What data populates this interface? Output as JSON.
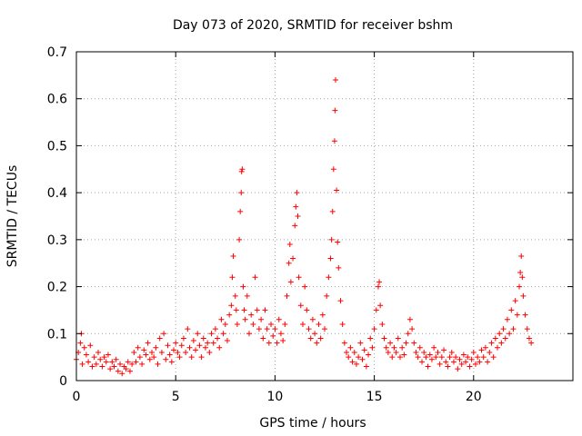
{
  "chart_data": {
    "type": "scatter",
    "title": "Day 073 of 2020, SRMTID for receiver bshm",
    "xlabel": "GPS time / hours",
    "ylabel": "SRMTID / TECUs",
    "xlim": [
      0,
      25
    ],
    "ylim": [
      0,
      0.7
    ],
    "xticks": [
      0,
      5,
      10,
      15,
      20
    ],
    "xtick_labels": [
      "0",
      "5",
      "10",
      "15",
      "20"
    ],
    "yticks": [
      0,
      0.1,
      0.2,
      0.3,
      0.4,
      0.5,
      0.6,
      0.7
    ],
    "ytick_labels": [
      "0",
      "0.1",
      "0.2",
      "0.3",
      "0.4",
      "0.5",
      "0.6",
      "0.7"
    ],
    "grid": true,
    "marker": "+",
    "color": "#ff0000",
    "series": [
      {
        "name": "SRMTID",
        "points": [
          [
            0.0,
            0.045
          ],
          [
            0.1,
            0.06
          ],
          [
            0.2,
            0.08
          ],
          [
            0.25,
            0.1
          ],
          [
            0.3,
            0.035
          ],
          [
            0.4,
            0.07
          ],
          [
            0.5,
            0.055
          ],
          [
            0.6,
            0.04
          ],
          [
            0.7,
            0.075
          ],
          [
            0.8,
            0.03
          ],
          [
            0.9,
            0.05
          ],
          [
            1.0,
            0.035
          ],
          [
            1.1,
            0.06
          ],
          [
            1.2,
            0.045
          ],
          [
            1.3,
            0.03
          ],
          [
            1.4,
            0.05
          ],
          [
            1.5,
            0.04
          ],
          [
            1.6,
            0.055
          ],
          [
            1.7,
            0.025
          ],
          [
            1.8,
            0.04
          ],
          [
            1.9,
            0.03
          ],
          [
            2.0,
            0.045
          ],
          [
            2.1,
            0.02
          ],
          [
            2.2,
            0.035
          ],
          [
            2.3,
            0.015
          ],
          [
            2.4,
            0.03
          ],
          [
            2.5,
            0.025
          ],
          [
            2.6,
            0.04
          ],
          [
            2.7,
            0.02
          ],
          [
            2.8,
            0.035
          ],
          [
            2.9,
            0.06
          ],
          [
            3.0,
            0.04
          ],
          [
            3.1,
            0.07
          ],
          [
            3.2,
            0.05
          ],
          [
            3.3,
            0.035
          ],
          [
            3.4,
            0.065
          ],
          [
            3.5,
            0.055
          ],
          [
            3.6,
            0.08
          ],
          [
            3.7,
            0.045
          ],
          [
            3.8,
            0.06
          ],
          [
            3.9,
            0.05
          ],
          [
            4.0,
            0.07
          ],
          [
            4.1,
            0.035
          ],
          [
            4.2,
            0.09
          ],
          [
            4.3,
            0.06
          ],
          [
            4.4,
            0.1
          ],
          [
            4.5,
            0.045
          ],
          [
            4.6,
            0.075
          ],
          [
            4.7,
            0.055
          ],
          [
            4.8,
            0.04
          ],
          [
            4.9,
            0.065
          ],
          [
            5.0,
            0.08
          ],
          [
            5.1,
            0.06
          ],
          [
            5.2,
            0.05
          ],
          [
            5.3,
            0.075
          ],
          [
            5.4,
            0.09
          ],
          [
            5.5,
            0.06
          ],
          [
            5.6,
            0.11
          ],
          [
            5.7,
            0.07
          ],
          [
            5.8,
            0.05
          ],
          [
            5.9,
            0.085
          ],
          [
            6.0,
            0.065
          ],
          [
            6.1,
            0.1
          ],
          [
            6.2,
            0.075
          ],
          [
            6.3,
            0.05
          ],
          [
            6.4,
            0.09
          ],
          [
            6.5,
            0.07
          ],
          [
            6.6,
            0.08
          ],
          [
            6.7,
            0.06
          ],
          [
            6.8,
            0.1
          ],
          [
            6.9,
            0.08
          ],
          [
            7.0,
            0.11
          ],
          [
            7.1,
            0.09
          ],
          [
            7.2,
            0.07
          ],
          [
            7.3,
            0.13
          ],
          [
            7.4,
            0.1
          ],
          [
            7.5,
            0.12
          ],
          [
            7.6,
            0.085
          ],
          [
            7.7,
            0.14
          ],
          [
            7.8,
            0.16
          ],
          [
            7.85,
            0.22
          ],
          [
            7.9,
            0.265
          ],
          [
            8.0,
            0.18
          ],
          [
            8.05,
            0.15
          ],
          [
            8.1,
            0.12
          ],
          [
            8.2,
            0.3
          ],
          [
            8.25,
            0.36
          ],
          [
            8.3,
            0.4
          ],
          [
            8.32,
            0.445
          ],
          [
            8.35,
            0.45
          ],
          [
            8.4,
            0.2
          ],
          [
            8.45,
            0.15
          ],
          [
            8.5,
            0.13
          ],
          [
            8.6,
            0.18
          ],
          [
            8.7,
            0.1
          ],
          [
            8.8,
            0.14
          ],
          [
            8.9,
            0.12
          ],
          [
            9.0,
            0.22
          ],
          [
            9.1,
            0.15
          ],
          [
            9.2,
            0.11
          ],
          [
            9.3,
            0.13
          ],
          [
            9.4,
            0.09
          ],
          [
            9.5,
            0.15
          ],
          [
            9.6,
            0.11
          ],
          [
            9.7,
            0.08
          ],
          [
            9.8,
            0.12
          ],
          [
            9.9,
            0.095
          ],
          [
            10.0,
            0.11
          ],
          [
            10.1,
            0.08
          ],
          [
            10.2,
            0.13
          ],
          [
            10.3,
            0.1
          ],
          [
            10.4,
            0.085
          ],
          [
            10.5,
            0.12
          ],
          [
            10.6,
            0.18
          ],
          [
            10.7,
            0.25
          ],
          [
            10.75,
            0.29
          ],
          [
            10.8,
            0.21
          ],
          [
            10.9,
            0.26
          ],
          [
            11.0,
            0.33
          ],
          [
            11.05,
            0.37
          ],
          [
            11.1,
            0.4
          ],
          [
            11.15,
            0.35
          ],
          [
            11.2,
            0.22
          ],
          [
            11.3,
            0.16
          ],
          [
            11.4,
            0.12
          ],
          [
            11.5,
            0.2
          ],
          [
            11.6,
            0.15
          ],
          [
            11.7,
            0.11
          ],
          [
            11.8,
            0.09
          ],
          [
            11.9,
            0.13
          ],
          [
            12.0,
            0.1
          ],
          [
            12.1,
            0.08
          ],
          [
            12.2,
            0.12
          ],
          [
            12.3,
            0.09
          ],
          [
            12.4,
            0.14
          ],
          [
            12.5,
            0.11
          ],
          [
            12.6,
            0.18
          ],
          [
            12.7,
            0.22
          ],
          [
            12.8,
            0.26
          ],
          [
            12.85,
            0.3
          ],
          [
            12.9,
            0.36
          ],
          [
            12.95,
            0.45
          ],
          [
            13.0,
            0.51
          ],
          [
            13.02,
            0.575
          ],
          [
            13.05,
            0.64
          ],
          [
            13.1,
            0.405
          ],
          [
            13.15,
            0.295
          ],
          [
            13.2,
            0.24
          ],
          [
            13.3,
            0.17
          ],
          [
            13.4,
            0.12
          ],
          [
            13.5,
            0.08
          ],
          [
            13.6,
            0.06
          ],
          [
            13.7,
            0.05
          ],
          [
            13.8,
            0.07
          ],
          [
            13.9,
            0.04
          ],
          [
            14.0,
            0.06
          ],
          [
            14.1,
            0.035
          ],
          [
            14.2,
            0.05
          ],
          [
            14.3,
            0.08
          ],
          [
            14.4,
            0.045
          ],
          [
            14.5,
            0.065
          ],
          [
            14.6,
            0.03
          ],
          [
            14.7,
            0.055
          ],
          [
            14.8,
            0.09
          ],
          [
            14.9,
            0.07
          ],
          [
            15.0,
            0.11
          ],
          [
            15.1,
            0.15
          ],
          [
            15.2,
            0.2
          ],
          [
            15.25,
            0.21
          ],
          [
            15.3,
            0.16
          ],
          [
            15.4,
            0.12
          ],
          [
            15.5,
            0.09
          ],
          [
            15.6,
            0.07
          ],
          [
            15.7,
            0.06
          ],
          [
            15.8,
            0.08
          ],
          [
            15.9,
            0.05
          ],
          [
            16.0,
            0.07
          ],
          [
            16.1,
            0.06
          ],
          [
            16.2,
            0.09
          ],
          [
            16.3,
            0.05
          ],
          [
            16.4,
            0.07
          ],
          [
            16.5,
            0.055
          ],
          [
            16.6,
            0.08
          ],
          [
            16.7,
            0.1
          ],
          [
            16.8,
            0.13
          ],
          [
            16.9,
            0.11
          ],
          [
            17.0,
            0.08
          ],
          [
            17.1,
            0.06
          ],
          [
            17.2,
            0.05
          ],
          [
            17.3,
            0.07
          ],
          [
            17.4,
            0.04
          ],
          [
            17.5,
            0.06
          ],
          [
            17.6,
            0.05
          ],
          [
            17.7,
            0.03
          ],
          [
            17.8,
            0.055
          ],
          [
            17.9,
            0.045
          ],
          [
            18.0,
            0.07
          ],
          [
            18.1,
            0.05
          ],
          [
            18.2,
            0.06
          ],
          [
            18.3,
            0.035
          ],
          [
            18.4,
            0.05
          ],
          [
            18.5,
            0.065
          ],
          [
            18.6,
            0.04
          ],
          [
            18.7,
            0.03
          ],
          [
            18.8,
            0.05
          ],
          [
            18.9,
            0.06
          ],
          [
            19.0,
            0.04
          ],
          [
            19.1,
            0.05
          ],
          [
            19.2,
            0.025
          ],
          [
            19.3,
            0.045
          ],
          [
            19.4,
            0.035
          ],
          [
            19.5,
            0.055
          ],
          [
            19.6,
            0.04
          ],
          [
            19.7,
            0.05
          ],
          [
            19.8,
            0.03
          ],
          [
            19.9,
            0.045
          ],
          [
            20.0,
            0.06
          ],
          [
            20.1,
            0.035
          ],
          [
            20.2,
            0.05
          ],
          [
            20.3,
            0.04
          ],
          [
            20.4,
            0.065
          ],
          [
            20.5,
            0.05
          ],
          [
            20.6,
            0.07
          ],
          [
            20.7,
            0.04
          ],
          [
            20.8,
            0.06
          ],
          [
            20.9,
            0.08
          ],
          [
            21.0,
            0.05
          ],
          [
            21.1,
            0.09
          ],
          [
            21.2,
            0.07
          ],
          [
            21.3,
            0.1
          ],
          [
            21.4,
            0.08
          ],
          [
            21.5,
            0.11
          ],
          [
            21.6,
            0.09
          ],
          [
            21.7,
            0.13
          ],
          [
            21.8,
            0.1
          ],
          [
            21.9,
            0.15
          ],
          [
            22.0,
            0.11
          ],
          [
            22.1,
            0.17
          ],
          [
            22.2,
            0.14
          ],
          [
            22.3,
            0.2
          ],
          [
            22.35,
            0.23
          ],
          [
            22.4,
            0.265
          ],
          [
            22.45,
            0.22
          ],
          [
            22.5,
            0.18
          ],
          [
            22.6,
            0.14
          ],
          [
            22.7,
            0.11
          ],
          [
            22.8,
            0.09
          ],
          [
            22.9,
            0.08
          ]
        ]
      }
    ]
  }
}
